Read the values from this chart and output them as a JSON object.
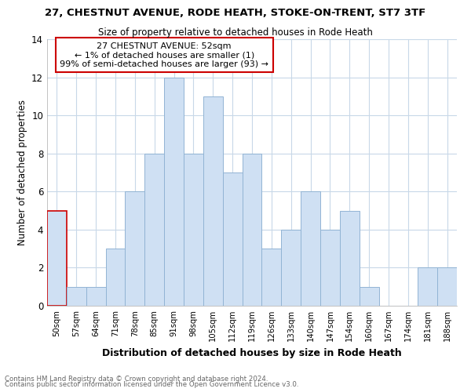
{
  "title1": "27, CHESTNUT AVENUE, RODE HEATH, STOKE-ON-TRENT, ST7 3TF",
  "title2": "Size of property relative to detached houses in Rode Heath",
  "xlabel": "Distribution of detached houses by size in Rode Heath",
  "ylabel": "Number of detached properties",
  "bar_labels": [
    "50sqm",
    "57sqm",
    "64sqm",
    "71sqm",
    "78sqm",
    "85sqm",
    "91sqm",
    "98sqm",
    "105sqm",
    "112sqm",
    "119sqm",
    "126sqm",
    "133sqm",
    "140sqm",
    "147sqm",
    "154sqm",
    "160sqm",
    "167sqm",
    "174sqm",
    "181sqm",
    "188sqm"
  ],
  "bar_values": [
    5,
    1,
    1,
    3,
    6,
    8,
    12,
    8,
    11,
    7,
    8,
    3,
    4,
    6,
    4,
    5,
    1,
    0,
    0,
    2,
    2
  ],
  "bar_color": "#cfe0f3",
  "bar_edge_color": "#92b4d4",
  "highlight_bar_index": 0,
  "highlight_bar_edge_color": "#cc0000",
  "annotation_title": "27 CHESTNUT AVENUE: 52sqm",
  "annotation_line1": "← 1% of detached houses are smaller (1)",
  "annotation_line2": "99% of semi-detached houses are larger (93) →",
  "annotation_box_edge_color": "#cc0000",
  "ylim": [
    0,
    14
  ],
  "yticks": [
    0,
    2,
    4,
    6,
    8,
    10,
    12,
    14
  ],
  "footnote1": "Contains HM Land Registry data © Crown copyright and database right 2024.",
  "footnote2": "Contains public sector information licensed under the Open Government Licence v3.0.",
  "background_color": "#ffffff",
  "grid_color": "#c8d8e8"
}
